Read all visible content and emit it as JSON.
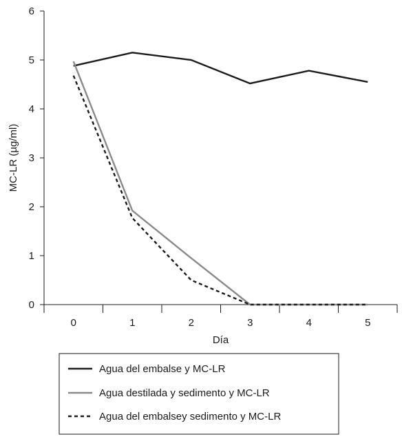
{
  "chart_data": {
    "type": "line",
    "title": "",
    "xlabel": "Día",
    "ylabel": "MC-LR (µg/ml)",
    "x": [
      0,
      1,
      2,
      3,
      4,
      5
    ],
    "xlim": [
      -0.5,
      5.5
    ],
    "ylim": [
      0,
      6
    ],
    "y_ticks": [
      0,
      1,
      2,
      3,
      4,
      5,
      6
    ],
    "grid": false,
    "legend_position": "bottom",
    "series": [
      {
        "name": "Agua del embalse y MC-LR",
        "values": [
          4.88,
          5.15,
          5.0,
          4.52,
          4.78,
          4.55
        ],
        "color": "#1a1a1a",
        "style": "solid"
      },
      {
        "name": "Agua destilada y sedimento y MC-LR",
        "values": [
          4.97,
          1.92,
          0.95,
          0.0,
          0.0,
          0.0
        ],
        "color": "#8a8a8a",
        "style": "solid"
      },
      {
        "name": "Agua del embalsey sedimento y MC-LR",
        "values": [
          4.68,
          1.77,
          0.5,
          0.0,
          0.0,
          0.0
        ],
        "color": "#1a1a1a",
        "style": "dashed"
      }
    ]
  }
}
